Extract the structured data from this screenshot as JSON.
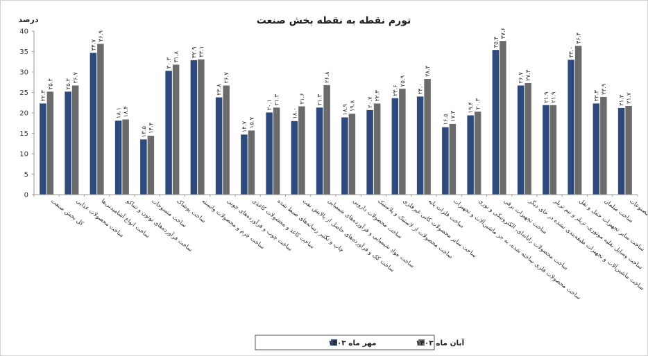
{
  "chart_data": {
    "type": "bar",
    "title": "تورم نقطه به نقطه بخش صنعت",
    "ylabel": "درصد",
    "ylim": [
      0,
      40
    ],
    "yticks": [
      "0",
      "5",
      "10",
      "15",
      "20",
      "25",
      "30",
      "35",
      "40"
    ],
    "grid": false,
    "legend_position": "bottom",
    "categories": [
      "کل بخش صنعت",
      "ساخت محصولات غذایی",
      "ساخت انواع آشامیدنی‌ها",
      "ساخت فرآورده‌های توتون و تنباکو",
      "ساخت منسوجات",
      "ساخت پوشاک",
      "ساخت چرم و محصولات وابسته",
      "ساخت چوب و فرآورده‌های چوبی",
      "ساخت کاغذ و محصولات کاغذی",
      "چاپ و تکثیر رسانه‌های ضبط شده",
      "ساخت کک و فرآورده‌های حاصل از پالایش نفت",
      "ساخت مواد شیمیایی و فرآورده‌های شیمیایی",
      "ساخت محصولات دارویی",
      "ساخت محصولات از لاستیک و پلاستیک",
      "ساخت سایر محصولات کانی غیرفلزی",
      "ساخت فلزات پایه",
      "ساخت محصولات فلزی ساخته شده، به جز ماشین‌آلات و تجهیزات",
      "ساخت محصولات رایانه‌ای، الکترونیکی و نوری",
      "ساخت تجهیزات برقی",
      "ساخت ماشین‌آلات و تجهیزات طبقه‌بندی نشده در جای دیگر",
      "ساخت وسایل نقلیه موتوری، تریلر و نیم تریلر",
      "ساخت سایر تجهیزات حمل و نقل",
      "ساخت مبلمان",
      "ساخت سایر مصنوعات"
    ],
    "series": [
      {
        "name": "مهر ماه ۱۴۰۳",
        "color": "#2e4a7d",
        "values": [
          22.3,
          25.2,
          34.7,
          18.1,
          13.5,
          30.3,
          32.9,
          23.8,
          14.7,
          20.1,
          18.0,
          21.3,
          18.9,
          20.7,
          23.6,
          24.0,
          16.5,
          19.4,
          35.4,
          26.7,
          21.9,
          33.0,
          22.3,
          21.2
        ],
        "labels": [
          "۲۲.۳",
          "۲۵.۲",
          "۳۴.۷",
          "۱۸.۱",
          "۱۳.۵",
          "۳۰.۳",
          "۳۲.۹",
          "۲۳.۸",
          "۱۴.۷",
          "۲۰.۱",
          "۱۸.۰",
          "۲۱.۳",
          "۱۸.۹",
          "۲۰.۷",
          "۲۳.۶",
          "۲۴.۰",
          "۱۶.۵",
          "۱۹.۴",
          "۳۵.۴",
          "۲۶.۷",
          "۲۱.۹",
          "۳۳.۰",
          "۲۲.۳",
          "۲۱.۲"
        ]
      },
      {
        "name": "آبان ماه ۱۴۰۳",
        "color": "#6b6b6b",
        "values": [
          25.2,
          26.7,
          36.9,
          18.4,
          14.4,
          31.8,
          33.1,
          26.7,
          15.7,
          21.3,
          21.6,
          26.8,
          19.8,
          22.3,
          25.9,
          28.3,
          17.3,
          20.3,
          37.6,
          27.3,
          21.9,
          36.4,
          23.9,
          21.7
        ],
        "labels": [
          "۲۵.۲",
          "۲۶.۷",
          "۳۶.۹",
          "۱۸.۴",
          "۱۴.۴",
          "۳۱.۸",
          "۳۳.۱",
          "۲۶.۷",
          "۱۵.۷",
          "۲۱.۳",
          "۲۱.۶",
          "۲۶.۸",
          "۱۹.۸",
          "۲۲.۳",
          "۲۵.۹",
          "۲۸.۳",
          "۱۷.۳",
          "۲۰.۳",
          "۳۷.۶",
          "۲۷.۳",
          "۲۱.۹",
          "۳۶.۴",
          "۲۳.۹",
          "۲۱.۷"
        ]
      }
    ]
  }
}
